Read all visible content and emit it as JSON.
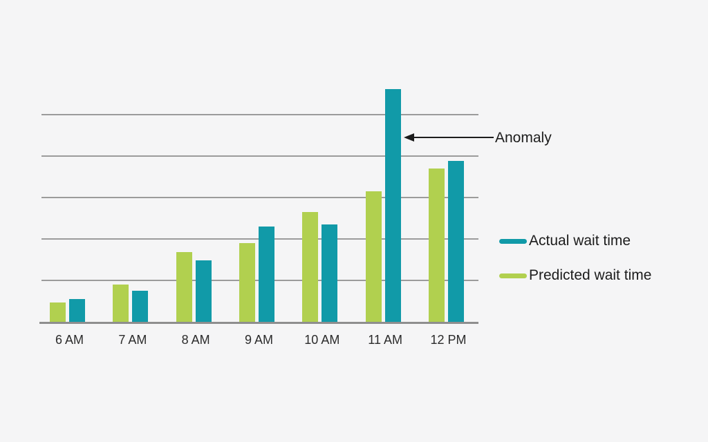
{
  "page": {
    "background": "#f5f5f6"
  },
  "colors": {
    "actual": "#119aa8",
    "predicted": "#b1d04f",
    "gridline": "#9b9b9b",
    "axis": "#8e8e8e",
    "text": "#1c1c1c"
  },
  "annotation": {
    "label": "Anomaly"
  },
  "legend": {
    "items": [
      {
        "label": "Actual wait time",
        "series": "actual"
      },
      {
        "label": "Predicted wait time",
        "series": "predicted"
      }
    ]
  },
  "chart_data": {
    "type": "bar",
    "categories": [
      "6 AM",
      "7 AM",
      "8 AM",
      "9 AM",
      "10 AM",
      "11 AM",
      "12 PM"
    ],
    "series": [
      {
        "name": "Predicted wait time",
        "key": "predicted",
        "color": "#b1d04f",
        "values": [
          4.7,
          9.0,
          16.8,
          19.0,
          26.5,
          31.5,
          37.0
        ]
      },
      {
        "name": "Actual wait time",
        "key": "actual",
        "color": "#119aa8",
        "values": [
          5.5,
          7.5,
          14.8,
          23.0,
          23.5,
          56.2,
          38.8
        ]
      }
    ],
    "title": "",
    "xlabel": "",
    "ylabel": "",
    "ylim": [
      0,
      60
    ],
    "gridlines_y": [
      10,
      20,
      30,
      40,
      50
    ],
    "grid": true,
    "y_axis_labels_shown": false,
    "legend_position": "right-middle",
    "annotations": [
      {
        "text": "Anomaly",
        "category": "11 AM",
        "series": "Actual wait time",
        "arrow": "left-pointing"
      }
    ]
  }
}
